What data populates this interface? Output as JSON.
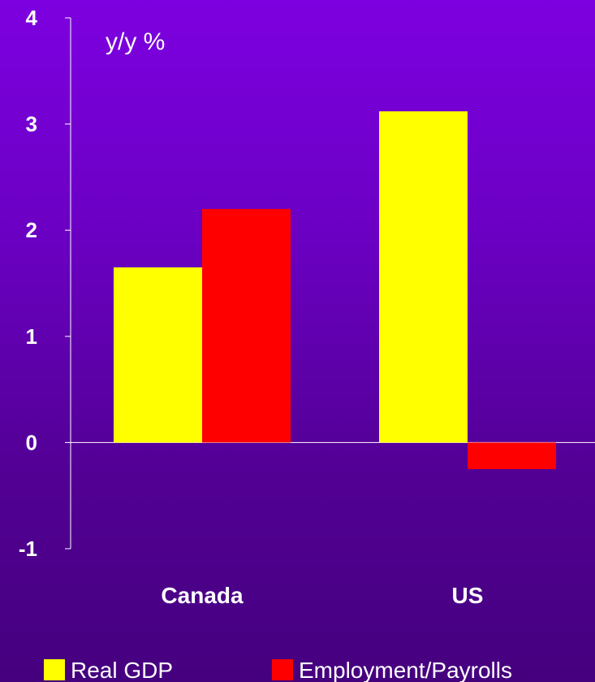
{
  "chart_data": {
    "type": "bar",
    "categories": [
      "Canada",
      "US"
    ],
    "series": [
      {
        "name": "Real GDP",
        "values": [
          1.65,
          3.12
        ],
        "color": "#ffff00"
      },
      {
        "name": "Employment/Payrolls",
        "values": [
          2.2,
          -0.25
        ],
        "color": "#ff0000"
      }
    ],
    "ylabel": "y/y %",
    "ylim": [
      -1,
      4
    ],
    "yticks": [
      "-1",
      "0",
      "1",
      "2",
      "3",
      "4"
    ],
    "legend": "bottom",
    "grid": false
  }
}
